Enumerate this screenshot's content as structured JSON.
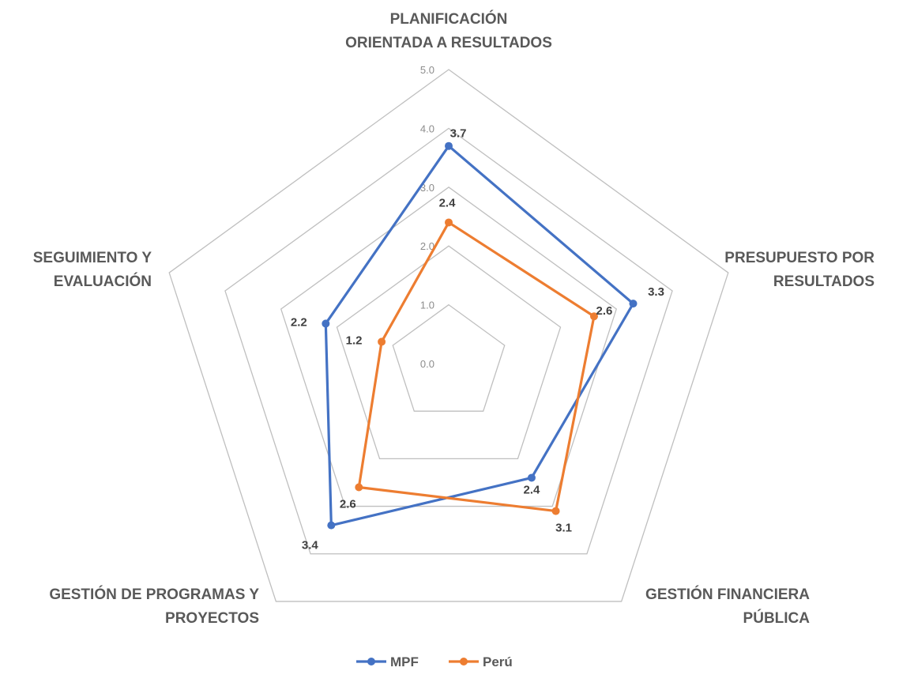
{
  "chart_data": {
    "type": "radar",
    "categories": [
      [
        "PLANIFICACIÓN",
        "ORIENTADA A RESULTADOS"
      ],
      [
        "PRESUPUESTO POR",
        "RESULTADOS"
      ],
      [
        "GESTIÓN FINANCIERA",
        "PÚBLICA"
      ],
      [
        "GESTIÓN DE PROGRAMAS Y",
        "PROYECTOS"
      ],
      [
        "SEGUIMIENTO Y",
        "EVALUACIÓN"
      ]
    ],
    "ticks": [
      "0.0",
      "1.0",
      "2.0",
      "3.0",
      "4.0",
      "5.0"
    ],
    "rlim": [
      0,
      5
    ],
    "series": [
      {
        "name": "MPF",
        "color": "#4472C4",
        "values": [
          3.7,
          3.3,
          2.4,
          3.4,
          2.2
        ],
        "labels": [
          "3.7",
          "3.3",
          "2.4",
          "3.4",
          "2.2"
        ]
      },
      {
        "name": "Perú",
        "color": "#ED7D31",
        "values": [
          2.4,
          2.6,
          3.1,
          2.6,
          1.2
        ],
        "labels": [
          "2.4",
          "2.6",
          "3.1",
          "2.6",
          "1.2"
        ]
      }
    ],
    "legend": "bottom"
  }
}
